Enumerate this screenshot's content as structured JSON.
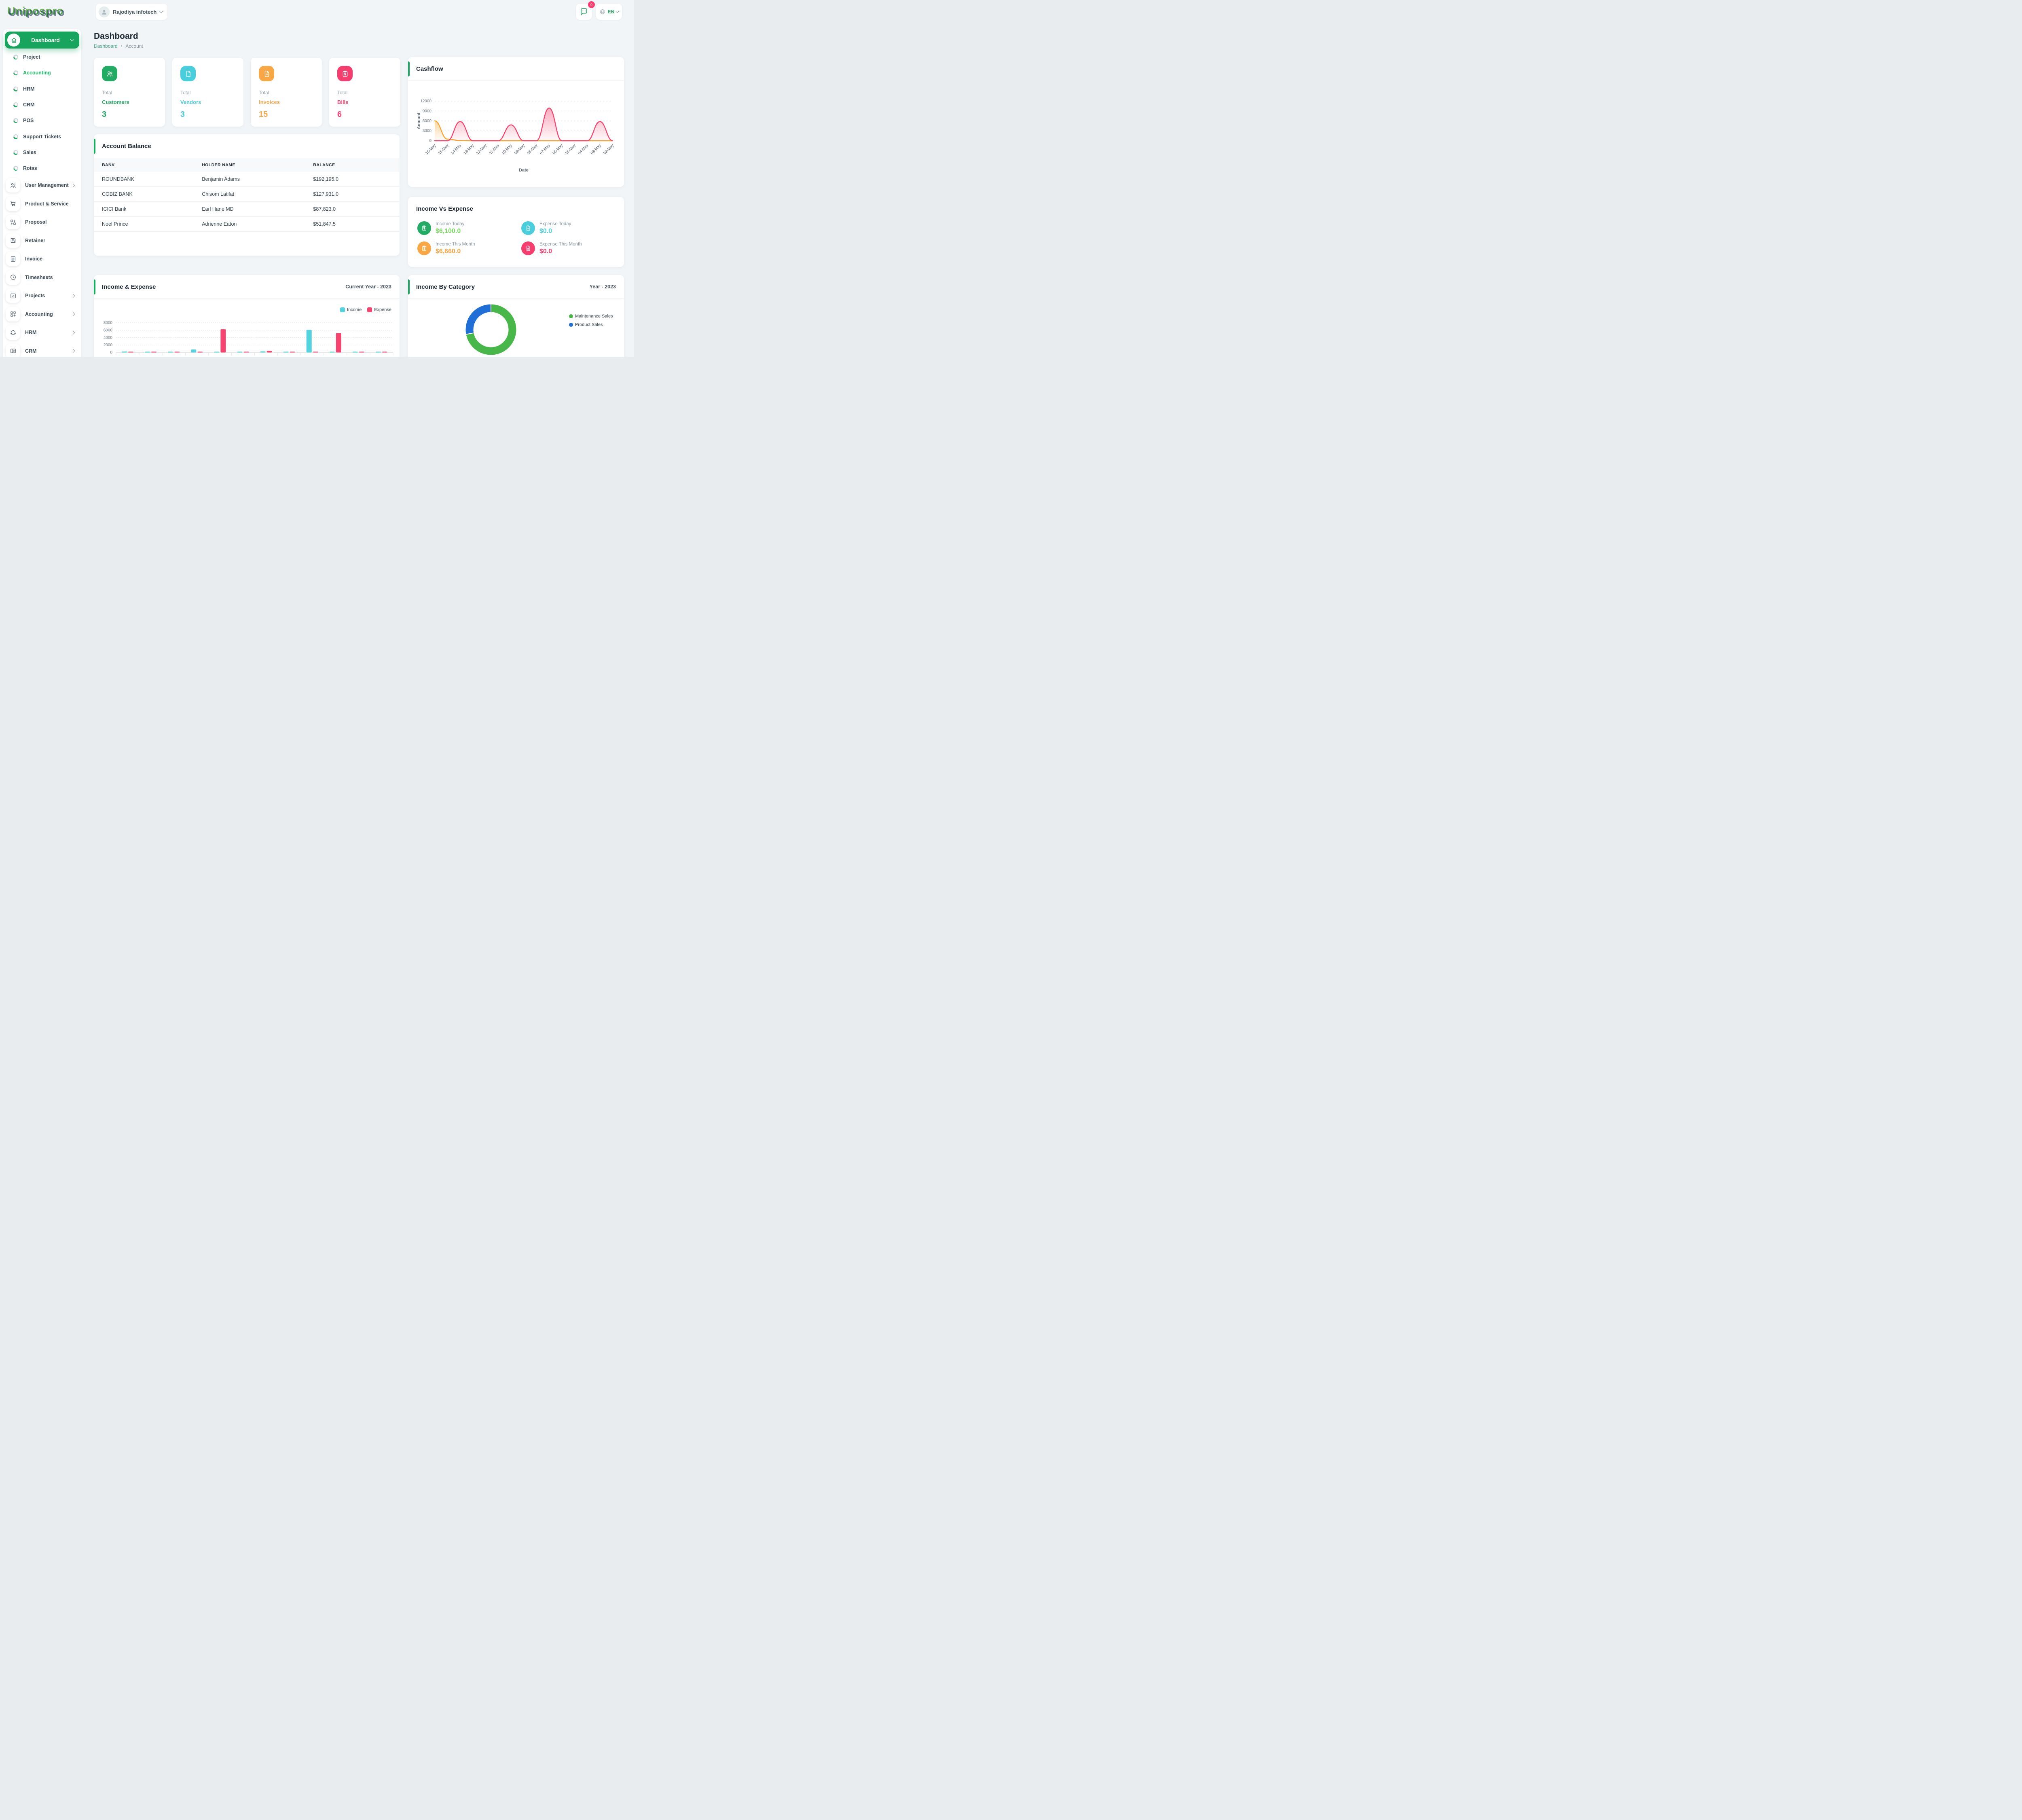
{
  "header": {
    "logo": "Unipospro",
    "company": "Rajodiya infotech",
    "messages_badge": "0",
    "language": "EN"
  },
  "sidebar": {
    "dashboard_label": "Dashboard",
    "subitems": [
      {
        "label": "Project",
        "active": false
      },
      {
        "label": "Accounting",
        "active": true
      },
      {
        "label": "HRM",
        "active": false
      },
      {
        "label": "CRM",
        "active": false
      },
      {
        "label": "POS",
        "active": false
      },
      {
        "label": "Support Tickets",
        "active": false
      },
      {
        "label": "Sales",
        "active": false
      },
      {
        "label": "Rotas",
        "active": false
      }
    ],
    "sections": [
      {
        "label": "User Management",
        "icon": "users",
        "chevron": true
      },
      {
        "label": "Product & Service",
        "icon": "cart",
        "chevron": false
      },
      {
        "label": "Proposal",
        "icon": "transfer",
        "chevron": false
      },
      {
        "label": "Retainer",
        "icon": "floppy",
        "chevron": false
      },
      {
        "label": "Invoice",
        "icon": "invoice",
        "chevron": false
      },
      {
        "label": "Timesheets",
        "icon": "clock",
        "chevron": false
      },
      {
        "label": "Projects",
        "icon": "check-square",
        "chevron": true
      },
      {
        "label": "Accounting",
        "icon": "grid-plus",
        "chevron": true
      },
      {
        "label": "HRM",
        "icon": "circle-nodes",
        "chevron": true
      },
      {
        "label": "CRM",
        "icon": "id-card",
        "chevron": true
      }
    ]
  },
  "page": {
    "title": "Dashboard",
    "breadcrumb": [
      "Dashboard",
      "Account"
    ]
  },
  "stats": [
    {
      "label": "Total",
      "name": "Customers",
      "value": "3",
      "color": "#21ab63",
      "icon": "users"
    },
    {
      "label": "Total",
      "name": "Vendors",
      "value": "3",
      "color": "#49cede",
      "icon": "file"
    },
    {
      "label": "Total",
      "name": "Invoices",
      "value": "15",
      "color": "#f9a644",
      "icon": "file-invoice"
    },
    {
      "label": "Total",
      "name": "Bills",
      "value": "6",
      "color": "#f53e6e",
      "icon": "clipboard-dollar"
    }
  ],
  "account_balance": {
    "title": "Account Balance",
    "columns": [
      "BANK",
      "HOLDER NAME",
      "BALANCE"
    ],
    "rows": [
      [
        "ROUNDBANK",
        "Benjamin Adams",
        "$192,195.0"
      ],
      [
        "COBIZ BANK",
        "Chisom Latifat",
        "$127,931.0"
      ],
      [
        "ICICI Bank",
        "Earl Hane MD",
        "$87,823.0"
      ],
      [
        "Noel Prince",
        "Adrienne Eaton",
        "$51,847.5"
      ]
    ]
  },
  "income_vs_expense": {
    "title": "Income Vs Expense",
    "items": [
      {
        "label": "Income Today",
        "value": "$6,100.0",
        "icon": "clipboard-dollar",
        "icon_color": "#21ab63",
        "value_color": "#76dd5c"
      },
      {
        "label": "Expense Today",
        "value": "$0.0",
        "icon": "file-invoice",
        "icon_color": "#49cede",
        "value_color": "#49cede"
      },
      {
        "label": "Income This Month",
        "value": "$6,660.0",
        "icon": "clipboard-dollar",
        "icon_color": "#f9a644",
        "value_color": "#f9a644"
      },
      {
        "label": "Expense This Month",
        "value": "$0.0",
        "icon": "file-invoice",
        "icon_color": "#f53e6e",
        "value_color": "#f53e6e"
      }
    ]
  },
  "chart_data": [
    {
      "type": "area",
      "title": "Cashflow",
      "xlabel": "Date",
      "ylabel": "Amount",
      "ylim": [
        0,
        12000
      ],
      "yticks": [
        0,
        3000,
        6000,
        9000,
        12000
      ],
      "grid": "dashed",
      "legend_position": "none",
      "x": [
        "16-May",
        "15-May",
        "14-May",
        "13-May",
        "12-May",
        "11-May",
        "10-May",
        "09-May",
        "08-May",
        "07-May",
        "06-May",
        "05-May",
        "04-May",
        "03-May",
        "02-May"
      ],
      "series": [
        {
          "name": "series-orange",
          "color": "#f6a52d",
          "values": [
            6000,
            500,
            60,
            0,
            0,
            0,
            0,
            0,
            0,
            0,
            0,
            0,
            0,
            0,
            0
          ]
        },
        {
          "name": "series-pink",
          "color": "#f5446e",
          "values": [
            0,
            0,
            5800,
            0,
            0,
            0,
            4800,
            0,
            0,
            9900,
            0,
            0,
            0,
            5800,
            0
          ]
        }
      ]
    },
    {
      "type": "bar",
      "title": "Income & Expense",
      "subtitle": "Current Year - 2023",
      "ylim": [
        0,
        8000
      ],
      "yticks": [
        0,
        2000,
        4000,
        6000,
        8000
      ],
      "grid": "dotted",
      "legend": [
        "Income",
        "Expense"
      ],
      "legend_position": "top-right",
      "categories": [
        "",
        "",
        "",
        "",
        "",
        "",
        "",
        "",
        "",
        "",
        "",
        ""
      ],
      "series": [
        {
          "name": "Income",
          "color": "#52d3de",
          "values": [
            250,
            150,
            150,
            800,
            150,
            150,
            280,
            150,
            6100,
            150,
            150,
            150
          ]
        },
        {
          "name": "Expense",
          "color": "#f5446e",
          "values": [
            150,
            150,
            150,
            150,
            6250,
            150,
            420,
            150,
            150,
            5200,
            150,
            150
          ]
        }
      ]
    },
    {
      "type": "pie",
      "donut": true,
      "title": "Income By Category",
      "subtitle": "Year - 2023",
      "labels": [
        "Maintenance Sales",
        "Product Sales"
      ],
      "values": [
        72,
        28
      ],
      "colors": [
        "#47b749",
        "#1f6fd6"
      ],
      "legend_position": "right"
    }
  ]
}
